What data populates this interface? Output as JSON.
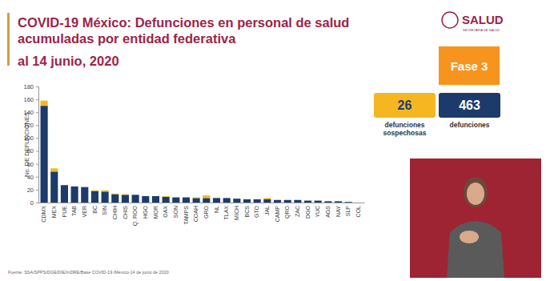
{
  "chart_data": {
    "type": "bar",
    "stacked": true,
    "title": [
      "COVID-19 México: Defunciones en personal de salud",
      "acumuladas por entidad federativa"
    ],
    "subtitle": "al 14 junio, 2020",
    "y_label": "No. DE DEFUNCIONES",
    "categories": [
      "CDMX",
      "MEX",
      "PUE",
      "TAB",
      "VER",
      "BC",
      "SIN",
      "CHIH",
      "CHIS",
      "Q. ROO",
      "HGO",
      "MOR",
      "OAX",
      "SON",
      "TAMPS",
      "COAH",
      "GRO",
      "NL",
      "TLAX",
      "MICH",
      "BCS",
      "GTO",
      "JAL",
      "CAMP",
      "QRO",
      "ZAC",
      "DGO",
      "YUC",
      "AGS",
      "NAY",
      "SLP",
      "COL"
    ],
    "series": [
      {
        "name": "defunciones",
        "color": "#1c3b6b",
        "total": 463,
        "values": [
          150,
          48,
          27,
          25,
          24,
          18,
          17,
          13,
          12,
          12,
          10,
          10,
          9,
          8,
          8,
          7,
          7,
          7,
          7,
          6,
          5,
          5,
          5,
          4,
          4,
          4,
          3,
          3,
          2,
          2,
          1,
          0
        ]
      },
      {
        "name": "defunciones sospechosas",
        "color": "#f5b622",
        "total": 26,
        "values": [
          8,
          5,
          0,
          0,
          0,
          1,
          2,
          1,
          1,
          0,
          0,
          0,
          1,
          0,
          0,
          1,
          4,
          0,
          0,
          0,
          0,
          0,
          2,
          0,
          0,
          0,
          0,
          0,
          0,
          0,
          0,
          0
        ]
      }
    ],
    "ylim": [
      0,
      180
    ],
    "yticks": [
      0,
      20,
      40,
      60,
      80,
      100,
      120,
      140,
      160,
      180
    ],
    "grid": false,
    "legend": "right",
    "data_labels": false,
    "annotations": [
      "Fase 3",
      "SALUD",
      "SECRETARÍA DE SALUD",
      "Fuente: SSA/SPPS/DGE/DIE/InDRE/Base COVID-19 /México-14 de junio de 2020"
    ]
  }
}
